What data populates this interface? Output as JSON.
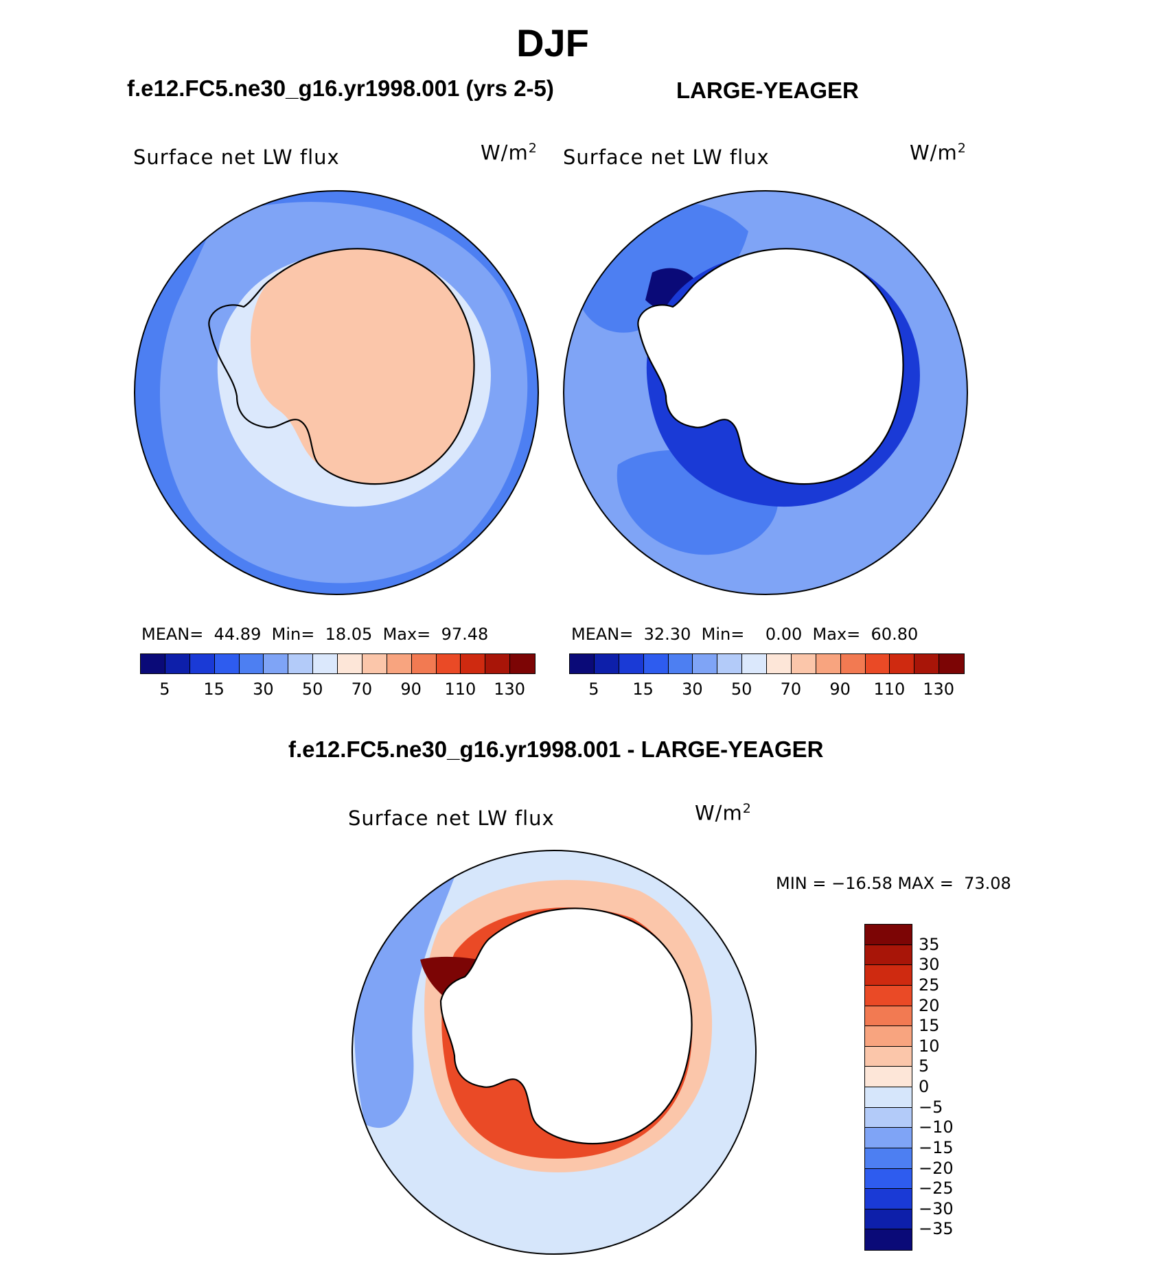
{
  "title": "DJF",
  "panels": [
    {
      "id": "left",
      "header": "f.e12.FC5.ne30_g16.yr1998.001 (yrs 2-5)",
      "variable": "Surface net LW flux",
      "units_base": "W/m",
      "units_exp": "2",
      "stats": {
        "mean_label": "MEAN=",
        "mean": "44.89",
        "min_label": "Min=",
        "min": "18.05",
        "max_label": "Max=",
        "max": "97.48"
      },
      "colorbar_ticks": [
        "5",
        "15",
        "30",
        "50",
        "70",
        "90",
        "110",
        "130"
      ]
    },
    {
      "id": "right",
      "header": "LARGE-YEAGER",
      "variable": "Surface net LW flux",
      "units_base": "W/m",
      "units_exp": "2",
      "stats": {
        "mean_label": "MEAN=",
        "mean": "32.30",
        "min_label": "Min=",
        "min": "0.00",
        "max_label": "Max=",
        "max": "60.80"
      },
      "colorbar_ticks": [
        "5",
        "15",
        "30",
        "50",
        "70",
        "90",
        "110",
        "130"
      ]
    }
  ],
  "difference": {
    "header": "f.e12.FC5.ne30_g16.yr1998.001 - LARGE-YEAGER",
    "variable": "Surface net LW flux",
    "units_base": "W/m",
    "units_exp": "2",
    "minmax": "MIN = −16.58 MAX =  73.08",
    "colorbar_ticks": [
      "35",
      "30",
      "25",
      "20",
      "15",
      "10",
      "5",
      "0",
      "−5",
      "−10",
      "−15",
      "−20",
      "−25",
      "−30",
      "−35"
    ]
  },
  "colors": {
    "abs_scale": [
      "#0a0a78",
      "#0d1faa",
      "#1a3ad6",
      "#2e5cef",
      "#4d7ff2",
      "#7fa4f6",
      "#b3cbf9",
      "#dbe8fc",
      "#fde6d8",
      "#fbc6aa",
      "#f8a47f",
      "#f27a52",
      "#ea4a26",
      "#cf2a10",
      "#a81508",
      "#7c0505"
    ],
    "diff_scale": [
      "#7c0505",
      "#a81508",
      "#cf2a10",
      "#ea4a26",
      "#f27a52",
      "#f8a47f",
      "#fbc6aa",
      "#fde6d8",
      "#d6e6fb",
      "#b3cbf9",
      "#7fa4f6",
      "#4d7ff2",
      "#2e5cef",
      "#1a3ad6",
      "#0d1faa",
      "#0a0a78"
    ],
    "ocean_left": "#4d7ff2",
    "ocean_left_light": "#7fa4f6",
    "continent_left": "#fbc6aa",
    "ocean_right": "#4d7ff2",
    "ocean_right_light": "#7fa4f6",
    "diff_ocean": "#d6e6fb",
    "diff_ring": "#ea4a26",
    "diff_ring_dark": "#7c0505"
  }
}
